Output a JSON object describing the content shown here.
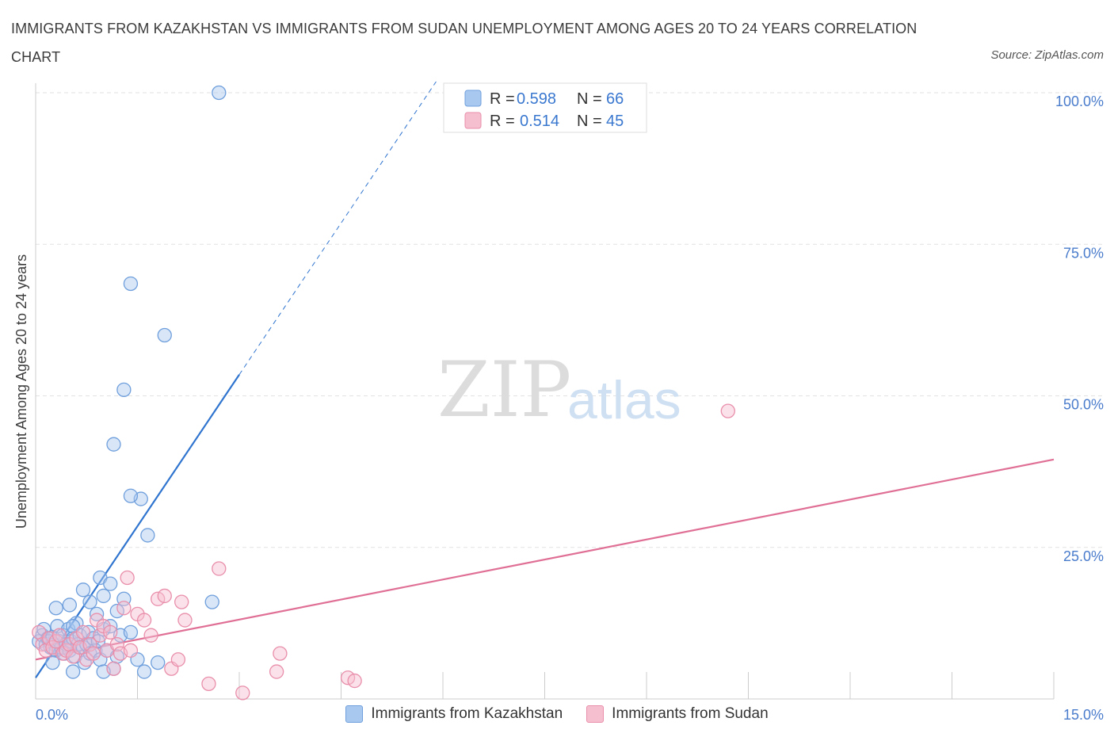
{
  "title": "IMMIGRANTS FROM KAZAKHSTAN VS IMMIGRANTS FROM SUDAN UNEMPLOYMENT AMONG AGES 20 TO 24 YEARS CORRELATION CHART",
  "source": "Source: ZipAtlas.com",
  "watermark": {
    "zip": "ZIP",
    "atlas": "atlas"
  },
  "colors": {
    "kazakhstan_fill": "#a9c8f0",
    "kazakhstan_stroke": "#6f9fdc",
    "kazakhstan_line": "#2f74cf",
    "sudan_fill": "#f6bfd0",
    "sudan_stroke": "#e98fab",
    "sudan_line": "#e06f95",
    "tick": "#4a7ccc",
    "grid": "#e2e2e2"
  },
  "stats": [
    {
      "r_label": "R =",
      "r": "0.598",
      "n_label": "N =",
      "n": "66",
      "series": "kazakhstan"
    },
    {
      "r_label": "R =",
      "r": "0.514",
      "n_label": "N =",
      "n": "45",
      "series": "sudan"
    }
  ],
  "chart_data": {
    "type": "scatter",
    "xlabel": "",
    "ylabel": "Unemployment Among Ages 20 to 24 years",
    "xlim": [
      0,
      15
    ],
    "ylim": [
      0,
      100
    ],
    "x_tick_labels": [
      "0.0%",
      "15.0%"
    ],
    "y_ticks": [
      25,
      50,
      75,
      100
    ],
    "y_tick_labels": [
      "25.0%",
      "50.0%",
      "75.0%",
      "100.0%"
    ],
    "grid": true,
    "legend_position": "bottom",
    "series": [
      {
        "name": "Immigrants from Kazakhstan",
        "key": "kazakhstan",
        "trend": {
          "x0": 0,
          "y0": 3.5,
          "x1": 3.0,
          "y1": 53.5,
          "dashed_to_x": 5.9
        },
        "points": [
          [
            0.05,
            9.5
          ],
          [
            0.1,
            10.5
          ],
          [
            0.12,
            11.5
          ],
          [
            0.15,
            9.0
          ],
          [
            0.18,
            10.0
          ],
          [
            0.2,
            9.5
          ],
          [
            0.22,
            8.5
          ],
          [
            0.25,
            10.2
          ],
          [
            0.28,
            9.0
          ],
          [
            0.3,
            8.0
          ],
          [
            0.32,
            12.0
          ],
          [
            0.35,
            9.5
          ],
          [
            0.38,
            8.5
          ],
          [
            0.4,
            10.5
          ],
          [
            0.42,
            7.5
          ],
          [
            0.45,
            9.0
          ],
          [
            0.48,
            11.5
          ],
          [
            0.5,
            8.0
          ],
          [
            0.52,
            9.5
          ],
          [
            0.55,
            10.0
          ],
          [
            0.58,
            7.0
          ],
          [
            0.6,
            12.5
          ],
          [
            0.62,
            9.0
          ],
          [
            0.65,
            10.5
          ],
          [
            0.7,
            8.5
          ],
          [
            0.72,
            6.0
          ],
          [
            0.75,
            9.0
          ],
          [
            0.78,
            11.0
          ],
          [
            0.8,
            7.5
          ],
          [
            0.85,
            10.0
          ],
          [
            0.88,
            8.0
          ],
          [
            0.9,
            14.0
          ],
          [
            0.92,
            9.5
          ],
          [
            0.95,
            6.5
          ],
          [
            1.0,
            11.5
          ],
          [
            1.05,
            8.0
          ],
          [
            1.1,
            12.0
          ],
          [
            1.15,
            5.0
          ],
          [
            1.2,
            7.0
          ],
          [
            1.25,
            10.5
          ],
          [
            0.3,
            15.0
          ],
          [
            0.5,
            15.5
          ],
          [
            0.55,
            12.0
          ],
          [
            0.7,
            18.0
          ],
          [
            0.8,
            16.0
          ],
          [
            0.95,
            20.0
          ],
          [
            1.0,
            17.0
          ],
          [
            1.1,
            19.0
          ],
          [
            1.2,
            14.5
          ],
          [
            1.3,
            16.5
          ],
          [
            1.4,
            11.0
          ],
          [
            1.5,
            6.5
          ],
          [
            1.6,
            4.5
          ],
          [
            1.8,
            6.0
          ],
          [
            1.15,
            42.0
          ],
          [
            1.3,
            51.0
          ],
          [
            1.4,
            68.5
          ],
          [
            1.55,
            33.0
          ],
          [
            1.65,
            27.0
          ],
          [
            1.9,
            60.0
          ],
          [
            2.6,
            16.0
          ],
          [
            2.7,
            100.0
          ],
          [
            0.25,
            6.0
          ],
          [
            0.55,
            4.5
          ],
          [
            1.0,
            4.5
          ],
          [
            1.4,
            33.5
          ]
        ]
      },
      {
        "name": "Immigrants from Sudan",
        "key": "sudan",
        "trend": {
          "x0": 0,
          "y0": 6.5,
          "x1": 15.0,
          "y1": 39.5
        },
        "points": [
          [
            0.05,
            11.0
          ],
          [
            0.1,
            9.0
          ],
          [
            0.15,
            8.0
          ],
          [
            0.2,
            10.0
          ],
          [
            0.25,
            8.5
          ],
          [
            0.3,
            9.5
          ],
          [
            0.35,
            10.5
          ],
          [
            0.4,
            7.5
          ],
          [
            0.45,
            8.0
          ],
          [
            0.5,
            9.0
          ],
          [
            0.55,
            7.0
          ],
          [
            0.6,
            10.0
          ],
          [
            0.65,
            8.5
          ],
          [
            0.7,
            11.0
          ],
          [
            0.75,
            6.5
          ],
          [
            0.8,
            9.0
          ],
          [
            0.85,
            7.5
          ],
          [
            0.9,
            13.0
          ],
          [
            0.95,
            10.5
          ],
          [
            1.0,
            12.0
          ],
          [
            1.05,
            8.0
          ],
          [
            1.1,
            11.0
          ],
          [
            1.15,
            5.0
          ],
          [
            1.2,
            9.0
          ],
          [
            1.25,
            7.5
          ],
          [
            1.3,
            15.0
          ],
          [
            1.35,
            20.0
          ],
          [
            1.4,
            8.0
          ],
          [
            1.5,
            14.0
          ],
          [
            1.6,
            13.0
          ],
          [
            1.7,
            10.5
          ],
          [
            1.8,
            16.5
          ],
          [
            1.9,
            17.0
          ],
          [
            2.0,
            5.0
          ],
          [
            2.1,
            6.5
          ],
          [
            2.2,
            13.0
          ],
          [
            2.15,
            16.0
          ],
          [
            2.7,
            21.5
          ],
          [
            2.55,
            2.5
          ],
          [
            3.6,
            7.5
          ],
          [
            3.55,
            4.5
          ],
          [
            4.6,
            3.5
          ],
          [
            4.7,
            3.0
          ],
          [
            10.2,
            47.5
          ],
          [
            3.05,
            1.0
          ]
        ]
      }
    ]
  }
}
